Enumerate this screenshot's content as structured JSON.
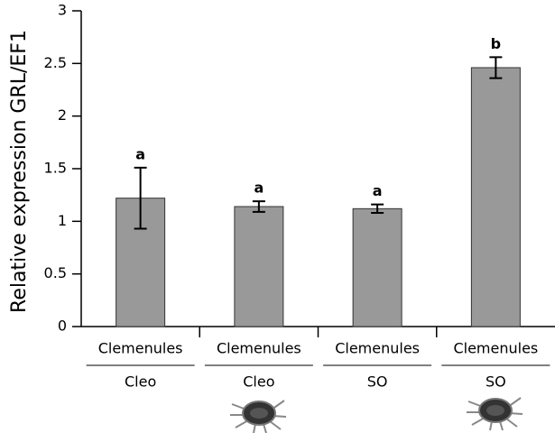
{
  "chart_data": {
    "type": "bar",
    "ylabel": "Relative expression GRL/EF1",
    "categories": [
      "Clemenules",
      "Clemenules",
      "Clemenules",
      "Clemenules"
    ],
    "groups": [
      "Cleo",
      "Cleo",
      "SO",
      "SO"
    ],
    "values": [
      1.22,
      1.14,
      1.12,
      2.46
    ],
    "errors": [
      0.29,
      0.05,
      0.04,
      0.1
    ],
    "letters": [
      "a",
      "a",
      "a",
      "b"
    ],
    "color": "#999999",
    "ylim": [
      0,
      3
    ],
    "yticks": [
      0,
      0.5,
      1,
      1.5,
      2,
      2.5,
      3
    ]
  }
}
